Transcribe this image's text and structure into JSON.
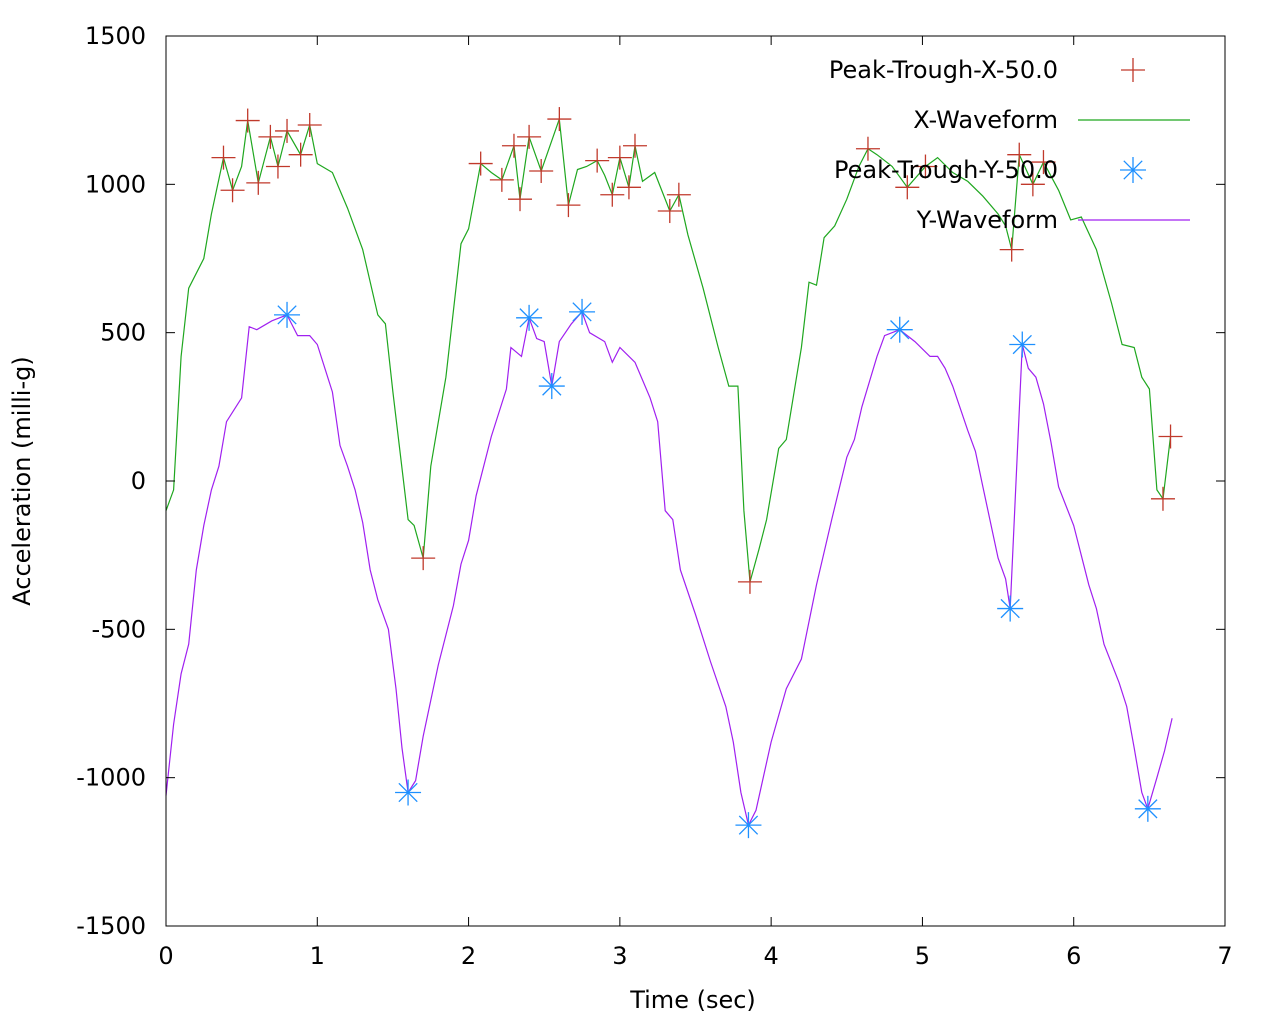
{
  "chart_data": {
    "type": "line",
    "title": "",
    "xlabel": "Time (sec)",
    "ylabel": "Acceleration (milli-g)",
    "xlim": [
      0,
      7
    ],
    "ylim": [
      -1500,
      1500
    ],
    "x_ticks": [
      0,
      1,
      2,
      3,
      4,
      5,
      6,
      7
    ],
    "y_ticks": [
      -1500,
      -1000,
      -500,
      0,
      500,
      1000,
      1500
    ],
    "grid": false,
    "legend_placement": "top-right",
    "series": [
      {
        "name": "Peak-Trough-X-50.0",
        "style": "points",
        "marker": "plus",
        "color": "#c0392b",
        "points": [
          [
            0.38,
            1090
          ],
          [
            0.44,
            980
          ],
          [
            0.54,
            1215
          ],
          [
            0.61,
            1005
          ],
          [
            0.69,
            1160
          ],
          [
            0.74,
            1060
          ],
          [
            0.8,
            1180
          ],
          [
            0.89,
            1100
          ],
          [
            0.95,
            1200
          ],
          [
            1.7,
            -260
          ],
          [
            2.08,
            1070
          ],
          [
            2.22,
            1015
          ],
          [
            2.3,
            1130
          ],
          [
            2.34,
            950
          ],
          [
            2.4,
            1160
          ],
          [
            2.48,
            1045
          ],
          [
            2.6,
            1220
          ],
          [
            2.66,
            930
          ],
          [
            2.85,
            1080
          ],
          [
            2.95,
            965
          ],
          [
            3.0,
            1090
          ],
          [
            3.06,
            990
          ],
          [
            3.1,
            1130
          ],
          [
            3.33,
            910
          ],
          [
            3.39,
            965
          ],
          [
            3.86,
            -340
          ],
          [
            4.64,
            1120
          ],
          [
            4.9,
            990
          ],
          [
            5.02,
            1060
          ],
          [
            5.59,
            780
          ],
          [
            5.64,
            1100
          ],
          [
            5.73,
            1000
          ],
          [
            5.8,
            1075
          ],
          [
            6.59,
            -60
          ],
          [
            6.64,
            150
          ]
        ]
      },
      {
        "name": "X-Waveform",
        "style": "line",
        "color": "#1fa71f",
        "points": [
          [
            0.0,
            -100
          ],
          [
            0.05,
            -30
          ],
          [
            0.1,
            420
          ],
          [
            0.15,
            650
          ],
          [
            0.25,
            750
          ],
          [
            0.3,
            900
          ],
          [
            0.38,
            1090
          ],
          [
            0.44,
            980
          ],
          [
            0.5,
            1060
          ],
          [
            0.54,
            1215
          ],
          [
            0.61,
            1005
          ],
          [
            0.69,
            1160
          ],
          [
            0.74,
            1060
          ],
          [
            0.8,
            1180
          ],
          [
            0.89,
            1100
          ],
          [
            0.95,
            1200
          ],
          [
            1.0,
            1070
          ],
          [
            1.1,
            1040
          ],
          [
            1.2,
            920
          ],
          [
            1.3,
            780
          ],
          [
            1.4,
            560
          ],
          [
            1.45,
            530
          ],
          [
            1.5,
            300
          ],
          [
            1.6,
            -130
          ],
          [
            1.64,
            -150
          ],
          [
            1.7,
            -260
          ],
          [
            1.75,
            50
          ],
          [
            1.85,
            350
          ],
          [
            1.95,
            800
          ],
          [
            2.0,
            850
          ],
          [
            2.08,
            1070
          ],
          [
            2.15,
            1040
          ],
          [
            2.22,
            1015
          ],
          [
            2.3,
            1130
          ],
          [
            2.34,
            950
          ],
          [
            2.4,
            1160
          ],
          [
            2.48,
            1045
          ],
          [
            2.6,
            1220
          ],
          [
            2.66,
            930
          ],
          [
            2.72,
            1050
          ],
          [
            2.78,
            1060
          ],
          [
            2.85,
            1080
          ],
          [
            2.9,
            1030
          ],
          [
            2.95,
            965
          ],
          [
            3.0,
            1090
          ],
          [
            3.06,
            990
          ],
          [
            3.1,
            1130
          ],
          [
            3.15,
            1010
          ],
          [
            3.23,
            1040
          ],
          [
            3.33,
            910
          ],
          [
            3.39,
            965
          ],
          [
            3.45,
            830
          ],
          [
            3.55,
            650
          ],
          [
            3.65,
            450
          ],
          [
            3.72,
            320
          ],
          [
            3.78,
            320
          ],
          [
            3.82,
            -100
          ],
          [
            3.86,
            -340
          ],
          [
            3.92,
            -230
          ],
          [
            3.97,
            -130
          ],
          [
            4.05,
            110
          ],
          [
            4.1,
            140
          ],
          [
            4.2,
            450
          ],
          [
            4.25,
            670
          ],
          [
            4.3,
            660
          ],
          [
            4.35,
            820
          ],
          [
            4.42,
            860
          ],
          [
            4.5,
            950
          ],
          [
            4.58,
            1060
          ],
          [
            4.64,
            1120
          ],
          [
            4.7,
            1100
          ],
          [
            4.8,
            1060
          ],
          [
            4.9,
            990
          ],
          [
            5.02,
            1060
          ],
          [
            5.1,
            1090
          ],
          [
            5.2,
            1040
          ],
          [
            5.3,
            1010
          ],
          [
            5.4,
            960
          ],
          [
            5.5,
            900
          ],
          [
            5.55,
            860
          ],
          [
            5.59,
            780
          ],
          [
            5.64,
            1100
          ],
          [
            5.73,
            1000
          ],
          [
            5.8,
            1075
          ],
          [
            5.9,
            980
          ],
          [
            5.98,
            880
          ],
          [
            6.05,
            890
          ],
          [
            6.15,
            780
          ],
          [
            6.25,
            600
          ],
          [
            6.32,
            460
          ],
          [
            6.4,
            450
          ],
          [
            6.45,
            350
          ],
          [
            6.5,
            310
          ],
          [
            6.55,
            -30
          ],
          [
            6.59,
            -60
          ],
          [
            6.64,
            150
          ]
        ]
      },
      {
        "name": "Peak-Trough-Y-50.0",
        "style": "points",
        "marker": "star",
        "color": "#1e90ff",
        "points": [
          [
            0.8,
            560
          ],
          [
            1.6,
            -1050
          ],
          [
            2.4,
            550
          ],
          [
            2.55,
            320
          ],
          [
            2.75,
            570
          ],
          [
            3.85,
            -1160
          ],
          [
            4.85,
            510
          ],
          [
            5.58,
            -430
          ],
          [
            5.66,
            460
          ],
          [
            6.49,
            -1105
          ]
        ]
      },
      {
        "name": "Y-Waveform",
        "style": "line",
        "color": "#a020f0",
        "points": [
          [
            0.0,
            -1060
          ],
          [
            0.05,
            -820
          ],
          [
            0.1,
            -650
          ],
          [
            0.15,
            -550
          ],
          [
            0.2,
            -300
          ],
          [
            0.25,
            -150
          ],
          [
            0.3,
            -30
          ],
          [
            0.35,
            50
          ],
          [
            0.4,
            200
          ],
          [
            0.5,
            280
          ],
          [
            0.55,
            520
          ],
          [
            0.6,
            510
          ],
          [
            0.7,
            540
          ],
          [
            0.8,
            560
          ],
          [
            0.87,
            490
          ],
          [
            0.95,
            490
          ],
          [
            1.0,
            460
          ],
          [
            1.1,
            300
          ],
          [
            1.15,
            120
          ],
          [
            1.2,
            50
          ],
          [
            1.25,
            -30
          ],
          [
            1.3,
            -140
          ],
          [
            1.35,
            -300
          ],
          [
            1.4,
            -400
          ],
          [
            1.47,
            -500
          ],
          [
            1.52,
            -700
          ],
          [
            1.56,
            -900
          ],
          [
            1.6,
            -1050
          ],
          [
            1.65,
            -1010
          ],
          [
            1.7,
            -860
          ],
          [
            1.8,
            -620
          ],
          [
            1.9,
            -420
          ],
          [
            1.95,
            -280
          ],
          [
            2.0,
            -200
          ],
          [
            2.05,
            -50
          ],
          [
            2.15,
            150
          ],
          [
            2.25,
            310
          ],
          [
            2.28,
            450
          ],
          [
            2.35,
            420
          ],
          [
            2.4,
            550
          ],
          [
            2.45,
            480
          ],
          [
            2.5,
            470
          ],
          [
            2.55,
            320
          ],
          [
            2.6,
            470
          ],
          [
            2.68,
            530
          ],
          [
            2.75,
            570
          ],
          [
            2.8,
            500
          ],
          [
            2.9,
            470
          ],
          [
            2.95,
            400
          ],
          [
            3.0,
            450
          ],
          [
            3.1,
            400
          ],
          [
            3.2,
            280
          ],
          [
            3.25,
            200
          ],
          [
            3.3,
            -100
          ],
          [
            3.35,
            -130
          ],
          [
            3.4,
            -300
          ],
          [
            3.5,
            -450
          ],
          [
            3.6,
            -610
          ],
          [
            3.7,
            -760
          ],
          [
            3.75,
            -880
          ],
          [
            3.8,
            -1050
          ],
          [
            3.85,
            -1160
          ],
          [
            3.9,
            -1110
          ],
          [
            4.0,
            -880
          ],
          [
            4.1,
            -700
          ],
          [
            4.2,
            -600
          ],
          [
            4.3,
            -350
          ],
          [
            4.4,
            -130
          ],
          [
            4.5,
            80
          ],
          [
            4.55,
            140
          ],
          [
            4.6,
            250
          ],
          [
            4.7,
            420
          ],
          [
            4.75,
            490
          ],
          [
            4.85,
            510
          ],
          [
            4.95,
            470
          ],
          [
            5.05,
            420
          ],
          [
            5.1,
            420
          ],
          [
            5.15,
            380
          ],
          [
            5.2,
            320
          ],
          [
            5.3,
            170
          ],
          [
            5.35,
            100
          ],
          [
            5.4,
            -20
          ],
          [
            5.5,
            -260
          ],
          [
            5.55,
            -330
          ],
          [
            5.58,
            -430
          ],
          [
            5.66,
            460
          ],
          [
            5.7,
            380
          ],
          [
            5.75,
            350
          ],
          [
            5.8,
            260
          ],
          [
            5.85,
            130
          ],
          [
            5.9,
            -20
          ],
          [
            6.0,
            -150
          ],
          [
            6.1,
            -350
          ],
          [
            6.15,
            -430
          ],
          [
            6.2,
            -550
          ],
          [
            6.3,
            -680
          ],
          [
            6.35,
            -760
          ],
          [
            6.4,
            -900
          ],
          [
            6.45,
            -1050
          ],
          [
            6.49,
            -1105
          ],
          [
            6.55,
            -1000
          ],
          [
            6.6,
            -910
          ],
          [
            6.65,
            -800
          ]
        ]
      }
    ]
  }
}
